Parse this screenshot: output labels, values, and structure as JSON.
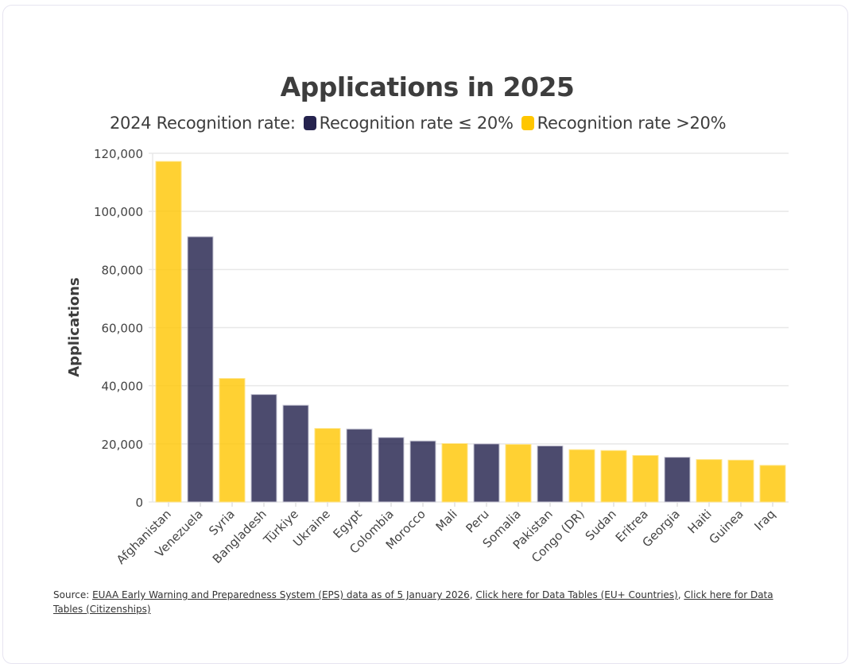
{
  "chart_data": {
    "type": "bar",
    "title": "Applications in 2025",
    "legend_title": "2024 Recognition rate:",
    "legend_placement": "top",
    "legend": [
      {
        "key": "low",
        "label": "Recognition rate ≤ 20%",
        "color": "#25234e"
      },
      {
        "key": "high",
        "label": "Recognition rate >20%",
        "color": "#ffc600"
      }
    ],
    "xlabel": "",
    "ylabel": "Applications",
    "ylim": [
      0,
      120000
    ],
    "yticks": [
      0,
      20000,
      40000,
      60000,
      80000,
      100000,
      120000
    ],
    "ytick_labels": [
      "0",
      "20,000",
      "40,000",
      "60,000",
      "80,000",
      "100,000",
      "120,000"
    ],
    "grid": true,
    "categories": [
      "Afghanistan",
      "Venezuela",
      "Syria",
      "Bangladesh",
      "Türkiye",
      "Ukraine",
      "Egypt",
      "Colombia",
      "Morocco",
      "Mali",
      "Peru",
      "Somalia",
      "Pakistan",
      "Congo (DR)",
      "Sudan",
      "Eritrea",
      "Georgia",
      "Haiti",
      "Guinea",
      "Iraq"
    ],
    "values": [
      117200,
      91300,
      42500,
      37000,
      33300,
      25300,
      25100,
      22200,
      21000,
      20100,
      20000,
      19800,
      19300,
      18000,
      17700,
      16000,
      15400,
      14600,
      14400,
      12600
    ],
    "groups": [
      "high",
      "low",
      "high",
      "low",
      "low",
      "high",
      "low",
      "low",
      "low",
      "high",
      "low",
      "high",
      "low",
      "high",
      "high",
      "high",
      "low",
      "high",
      "high",
      "high"
    ]
  },
  "source": {
    "prefix": "Source: ",
    "links": [
      "EUAA Early Warning and Preparedness System (EPS) data as of 5 January 2026",
      "Click here for Data Tables (EU+ Countries)",
      "Click here for Data Tables (Citizenships)"
    ],
    "separator": ", "
  }
}
